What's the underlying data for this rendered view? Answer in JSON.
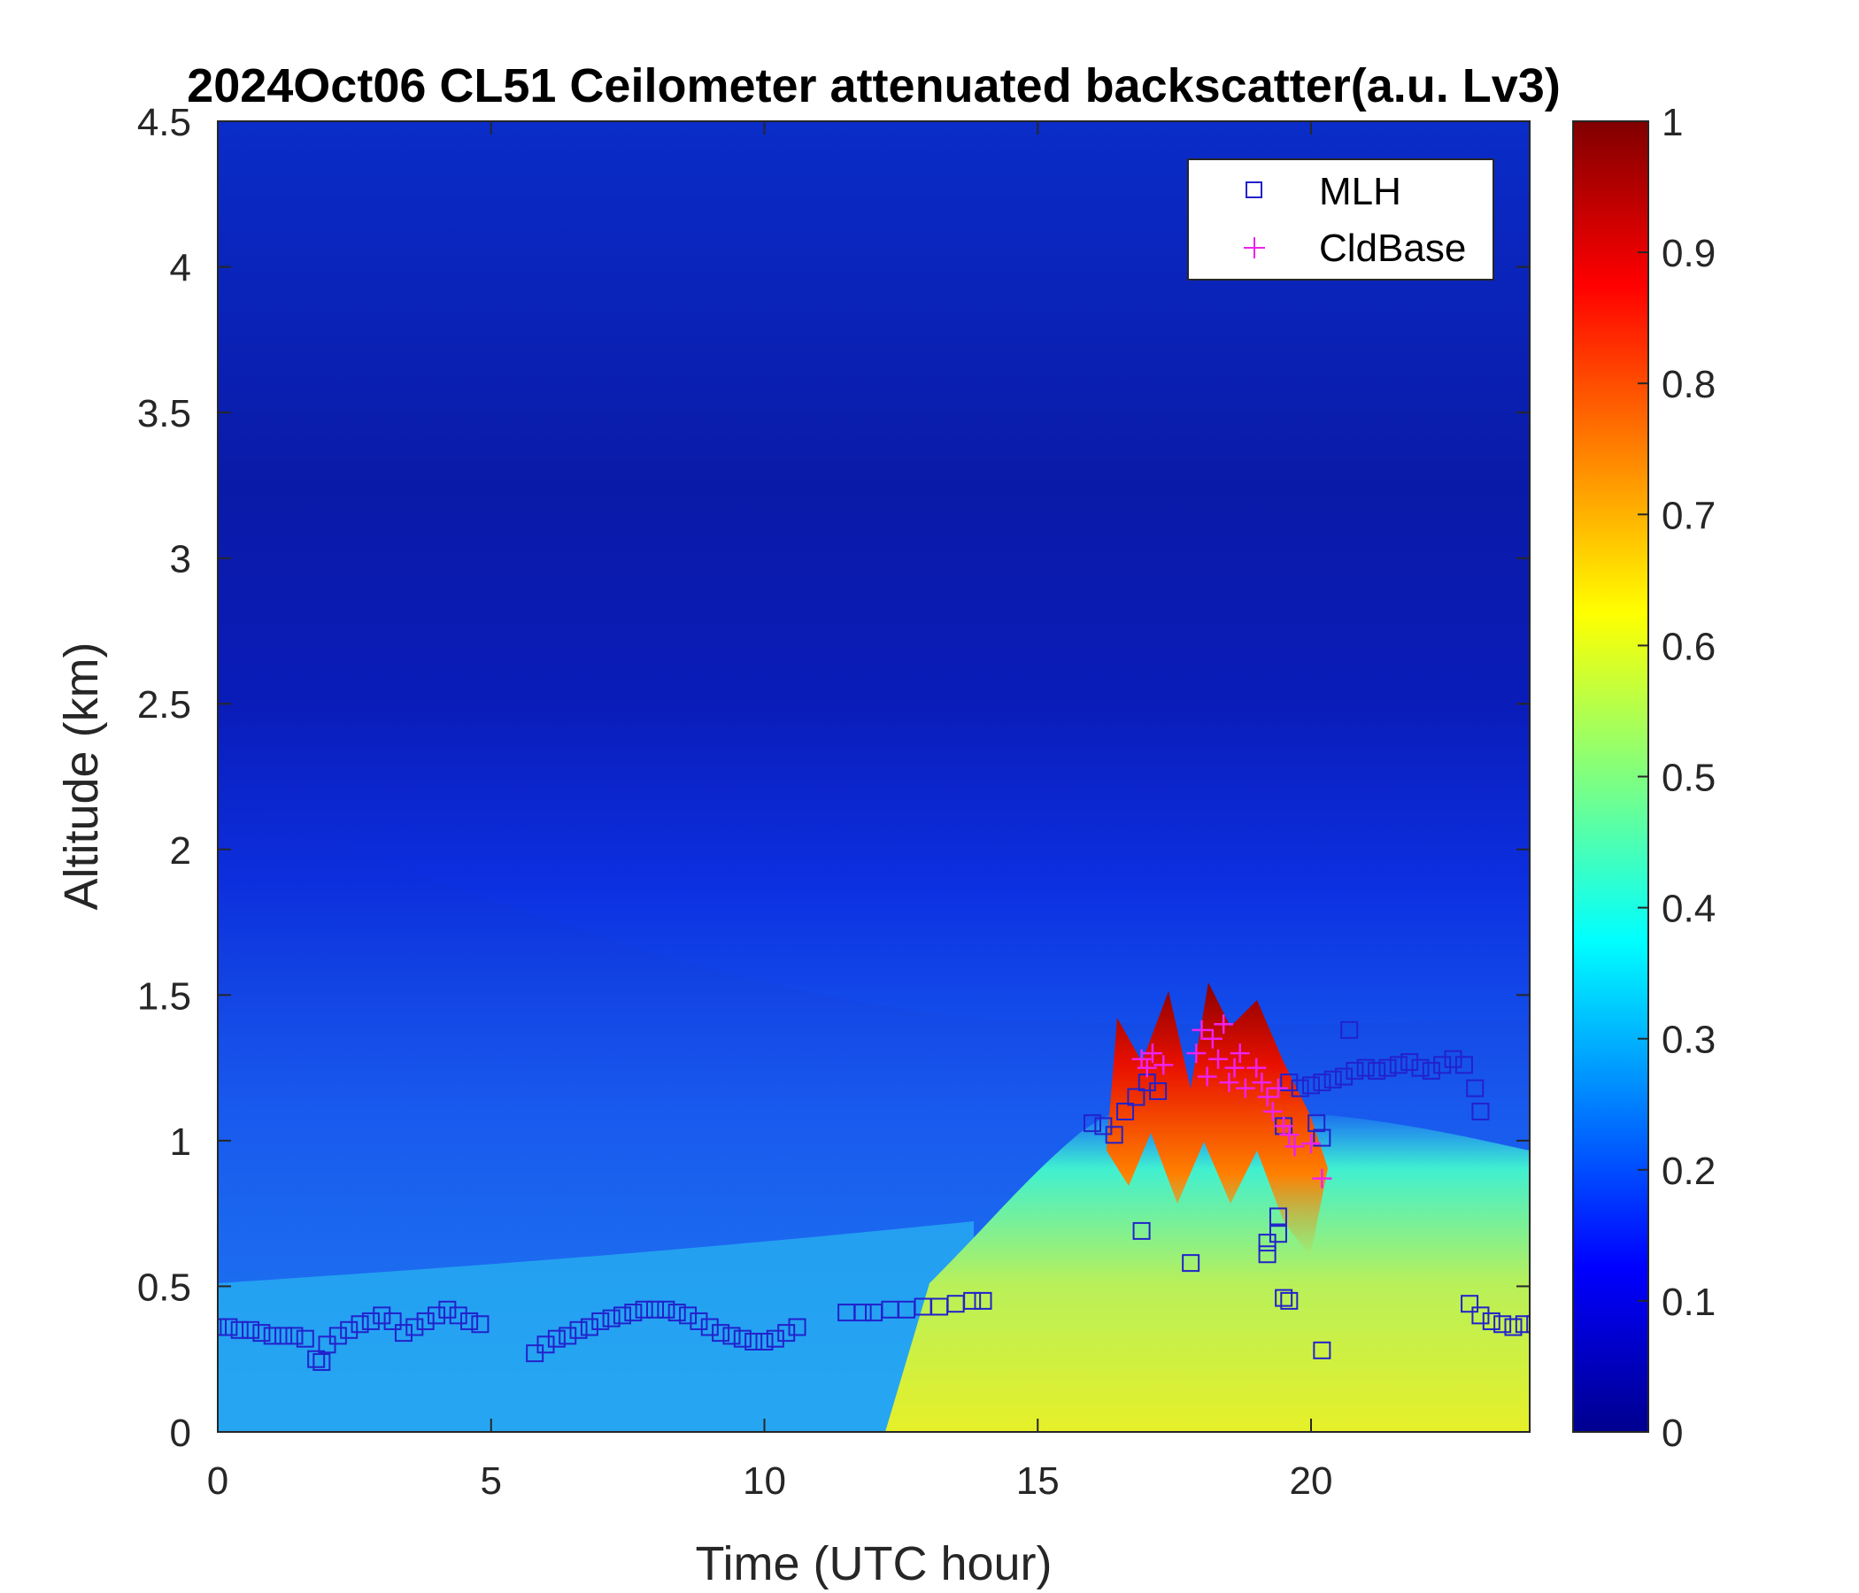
{
  "chart_data": {
    "type": "heatmap",
    "title": "2024Oct06 CL51 Ceilometer attenuated backscatter(a.u. Lv3)",
    "xlabel": "Time (UTC hour)",
    "ylabel": "Altitude (km)",
    "xlim": [
      0,
      24
    ],
    "ylim": [
      0,
      4.5
    ],
    "x_ticks": [
      0,
      5,
      10,
      15,
      20
    ],
    "x_tick_labels": [
      "0",
      "5",
      "10",
      "15",
      "20"
    ],
    "y_ticks": [
      0,
      0.5,
      1,
      1.5,
      2,
      2.5,
      3,
      3.5,
      4,
      4.5
    ],
    "y_tick_labels": [
      "0",
      "0.5",
      "1",
      "1.5",
      "2",
      "2.5",
      "3",
      "3.5",
      "4",
      "4.5"
    ],
    "colorbar": {
      "colormap": "jet",
      "range": [
        0,
        1
      ],
      "ticks": [
        0,
        0.1,
        0.2,
        0.3,
        0.4,
        0.5,
        0.6,
        0.7,
        0.8,
        0.9,
        1
      ],
      "tick_labels": [
        "0",
        "0.1",
        "0.2",
        "0.3",
        "0.4",
        "0.5",
        "0.6",
        "0.7",
        "0.8",
        "0.9",
        "1"
      ]
    },
    "legend": {
      "location": "top-right",
      "entries": [
        "MLH",
        "CldBase"
      ]
    },
    "series": [
      {
        "name": "MLH",
        "marker": "square",
        "color": "#2222cc",
        "points": [
          [
            0.0,
            0.36
          ],
          [
            0.2,
            0.36
          ],
          [
            0.4,
            0.35
          ],
          [
            0.6,
            0.35
          ],
          [
            0.8,
            0.34
          ],
          [
            1.0,
            0.33
          ],
          [
            1.2,
            0.33
          ],
          [
            1.4,
            0.33
          ],
          [
            1.6,
            0.32
          ],
          [
            1.8,
            0.25
          ],
          [
            1.9,
            0.24
          ],
          [
            2.0,
            0.3
          ],
          [
            2.2,
            0.33
          ],
          [
            2.4,
            0.35
          ],
          [
            2.6,
            0.37
          ],
          [
            2.8,
            0.38
          ],
          [
            3.0,
            0.4
          ],
          [
            3.2,
            0.38
          ],
          [
            3.4,
            0.34
          ],
          [
            3.6,
            0.36
          ],
          [
            3.8,
            0.38
          ],
          [
            4.0,
            0.4
          ],
          [
            4.2,
            0.42
          ],
          [
            4.4,
            0.4
          ],
          [
            4.6,
            0.38
          ],
          [
            4.8,
            0.37
          ],
          [
            5.8,
            0.27
          ],
          [
            6.0,
            0.3
          ],
          [
            6.2,
            0.32
          ],
          [
            6.4,
            0.33
          ],
          [
            6.6,
            0.35
          ],
          [
            6.8,
            0.36
          ],
          [
            7.0,
            0.38
          ],
          [
            7.2,
            0.39
          ],
          [
            7.4,
            0.4
          ],
          [
            7.6,
            0.41
          ],
          [
            7.8,
            0.42
          ],
          [
            8.0,
            0.42
          ],
          [
            8.2,
            0.42
          ],
          [
            8.4,
            0.41
          ],
          [
            8.6,
            0.4
          ],
          [
            8.8,
            0.38
          ],
          [
            9.0,
            0.36
          ],
          [
            9.2,
            0.34
          ],
          [
            9.4,
            0.33
          ],
          [
            9.6,
            0.32
          ],
          [
            9.8,
            0.31
          ],
          [
            10.0,
            0.31
          ],
          [
            10.2,
            0.32
          ],
          [
            10.4,
            0.34
          ],
          [
            10.6,
            0.36
          ],
          [
            11.5,
            0.41
          ],
          [
            11.8,
            0.41
          ],
          [
            12.0,
            0.41
          ],
          [
            12.3,
            0.42
          ],
          [
            12.6,
            0.42
          ],
          [
            12.9,
            0.43
          ],
          [
            13.2,
            0.43
          ],
          [
            13.5,
            0.44
          ],
          [
            13.8,
            0.45
          ],
          [
            14.0,
            0.45
          ],
          [
            16.0,
            1.06
          ],
          [
            16.2,
            1.05
          ],
          [
            16.4,
            1.02
          ],
          [
            16.6,
            1.1
          ],
          [
            16.8,
            1.15
          ],
          [
            17.0,
            1.2
          ],
          [
            17.2,
            1.17
          ],
          [
            16.9,
            0.69
          ],
          [
            17.8,
            0.58
          ],
          [
            19.2,
            0.65
          ],
          [
            19.2,
            0.61
          ],
          [
            19.4,
            0.74
          ],
          [
            19.4,
            0.68
          ],
          [
            19.5,
            0.46
          ],
          [
            19.6,
            0.45
          ],
          [
            19.5,
            1.05
          ],
          [
            20.1,
            1.06
          ],
          [
            20.2,
            1.01
          ],
          [
            20.2,
            0.28
          ],
          [
            20.7,
            1.38
          ],
          [
            19.6,
            1.2
          ],
          [
            19.8,
            1.18
          ],
          [
            20.0,
            1.19
          ],
          [
            20.2,
            1.2
          ],
          [
            20.4,
            1.21
          ],
          [
            20.6,
            1.22
          ],
          [
            20.8,
            1.24
          ],
          [
            21.0,
            1.25
          ],
          [
            21.2,
            1.24
          ],
          [
            21.4,
            1.25
          ],
          [
            21.6,
            1.26
          ],
          [
            21.8,
            1.27
          ],
          [
            22.0,
            1.25
          ],
          [
            22.2,
            1.24
          ],
          [
            22.4,
            1.26
          ],
          [
            22.6,
            1.28
          ],
          [
            22.8,
            1.26
          ],
          [
            23.0,
            1.18
          ],
          [
            23.1,
            1.1
          ],
          [
            22.9,
            0.44
          ],
          [
            23.1,
            0.4
          ],
          [
            23.3,
            0.38
          ],
          [
            23.5,
            0.37
          ],
          [
            23.7,
            0.36
          ],
          [
            23.9,
            0.37
          ],
          [
            24.1,
            0.37
          ]
        ]
      },
      {
        "name": "CldBase",
        "marker": "plus",
        "color": "#ee22ee",
        "points": [
          [
            16.9,
            1.28
          ],
          [
            17.0,
            1.25
          ],
          [
            17.1,
            1.3
          ],
          [
            17.3,
            1.26
          ],
          [
            17.9,
            1.3
          ],
          [
            18.0,
            1.38
          ],
          [
            18.1,
            1.22
          ],
          [
            18.2,
            1.35
          ],
          [
            18.3,
            1.28
          ],
          [
            18.4,
            1.4
          ],
          [
            18.5,
            1.2
          ],
          [
            18.6,
            1.25
          ],
          [
            18.7,
            1.3
          ],
          [
            18.8,
            1.18
          ],
          [
            19.0,
            1.25
          ],
          [
            19.1,
            1.2
          ],
          [
            19.2,
            1.15
          ],
          [
            19.3,
            1.1
          ],
          [
            19.4,
            1.18
          ],
          [
            19.5,
            1.05
          ],
          [
            19.6,
            1.02
          ],
          [
            19.7,
            0.98
          ],
          [
            20.0,
            0.99
          ],
          [
            20.2,
            0.87
          ]
        ]
      }
    ]
  }
}
